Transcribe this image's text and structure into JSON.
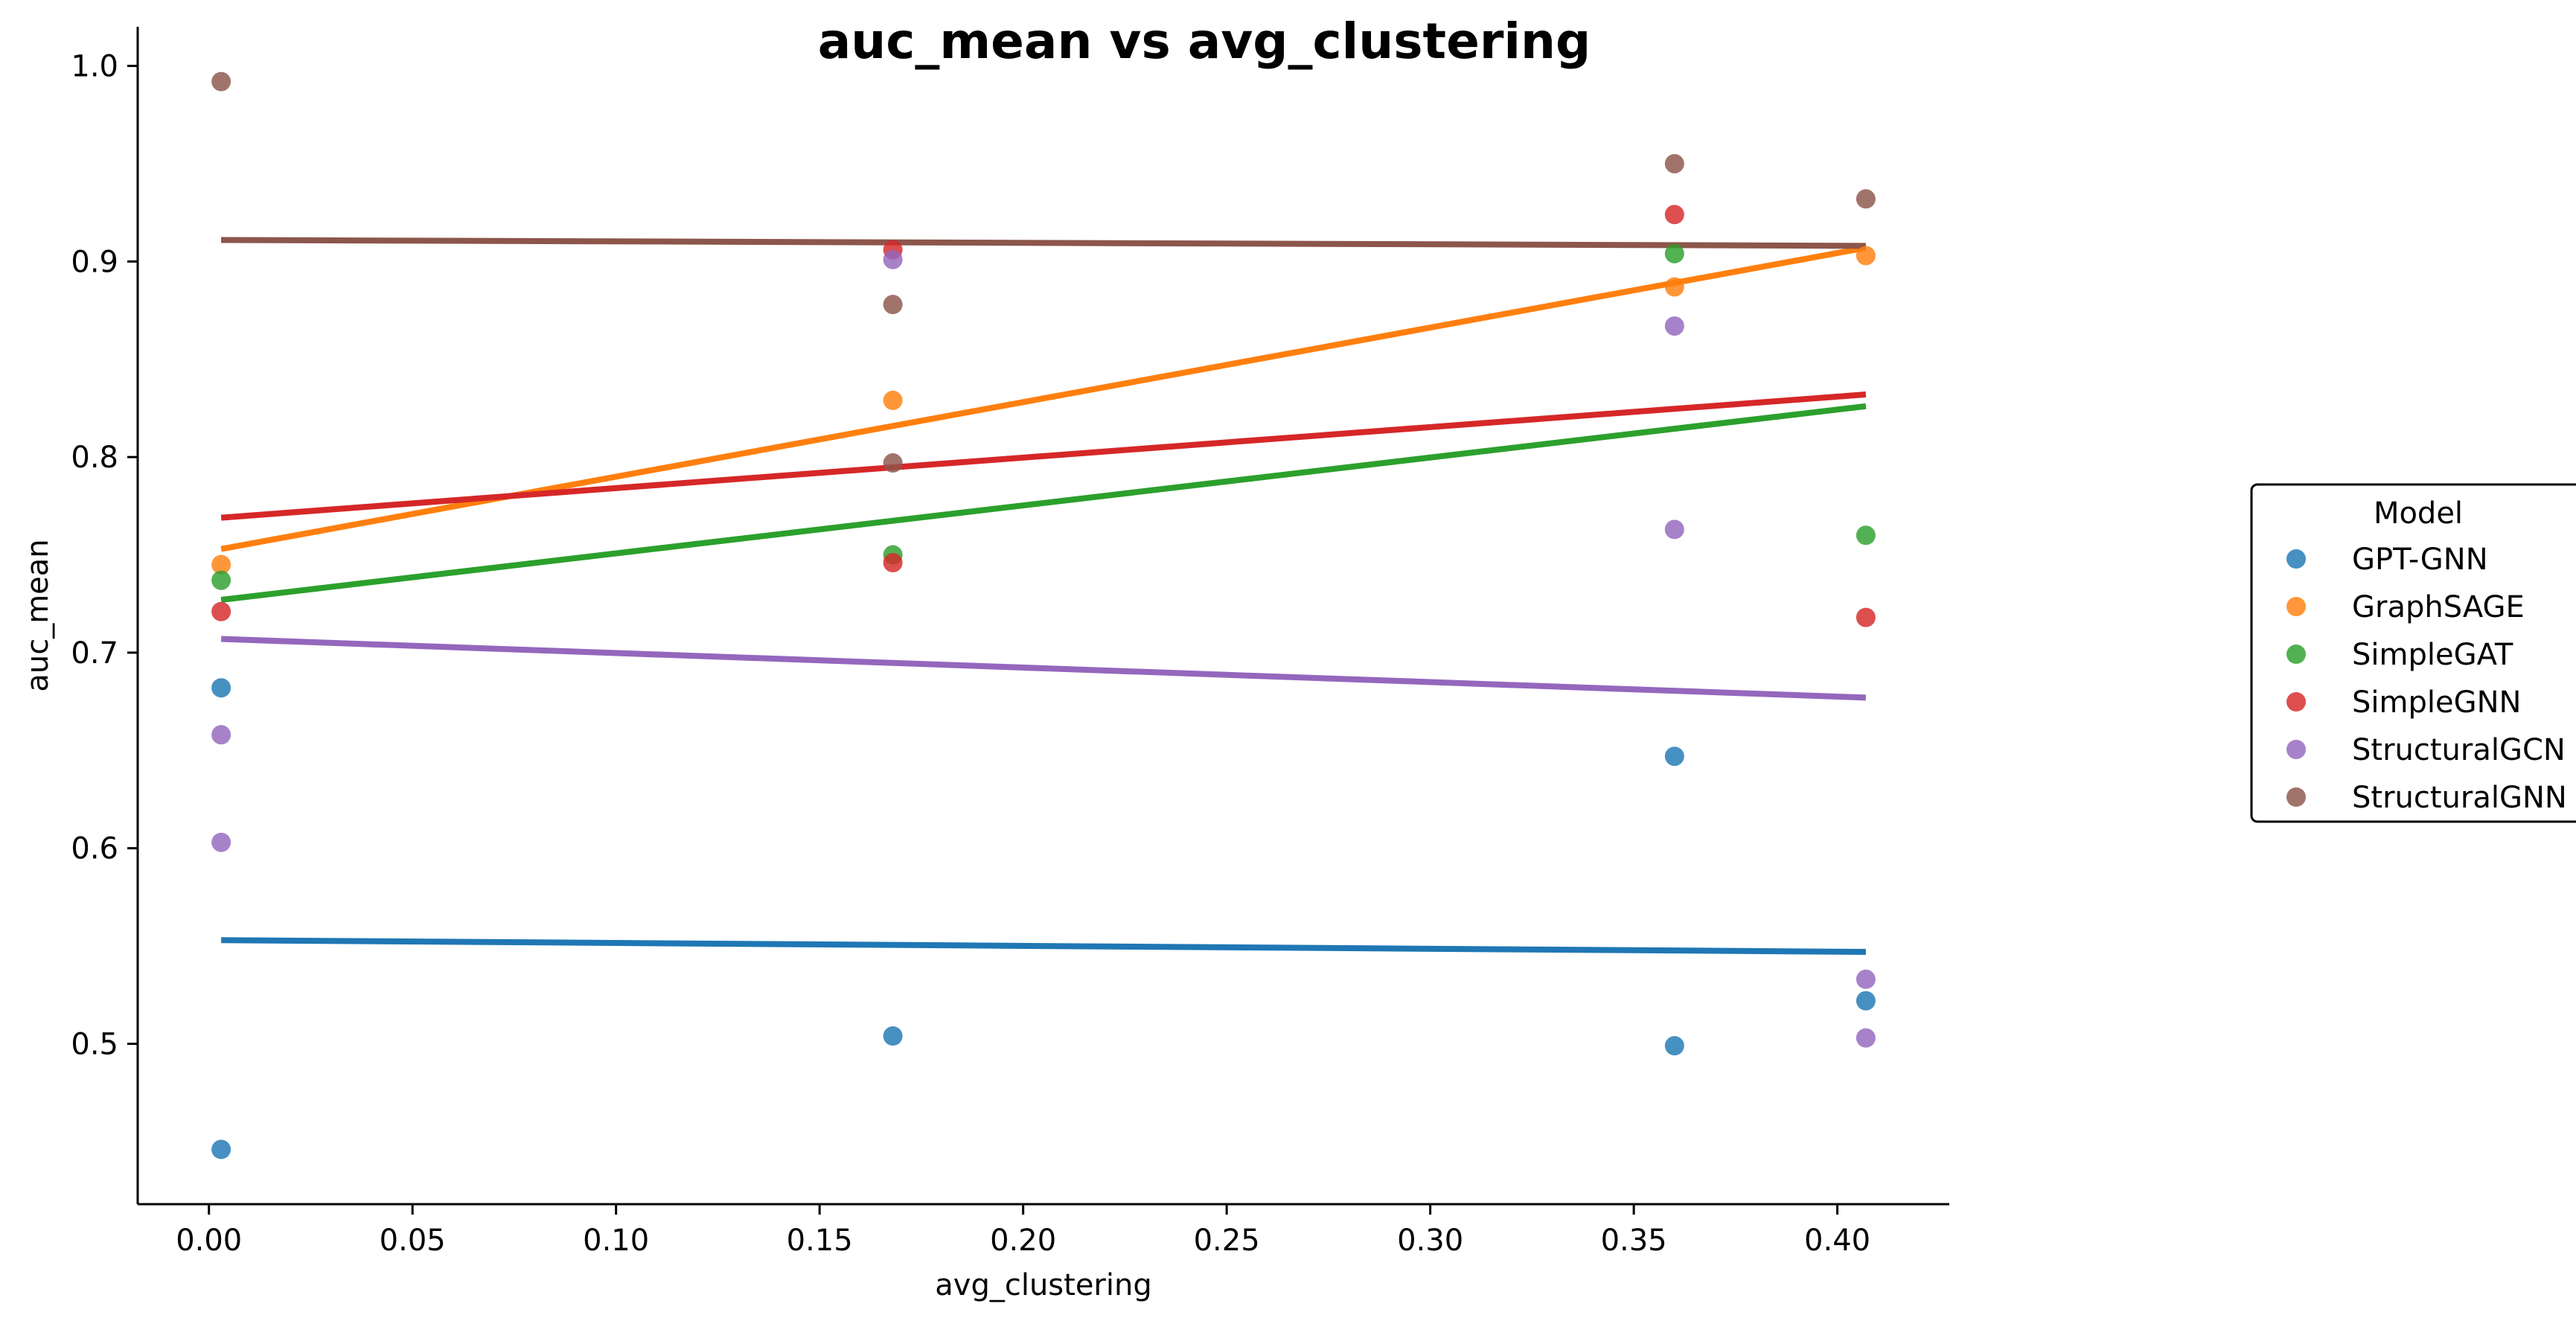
{
  "chart_data": {
    "type": "scatter",
    "title": "auc_mean vs avg_clustering",
    "xlabel": "avg_clustering",
    "ylabel": "auc_mean",
    "xlim": [
      -0.0175,
      0.4275
    ],
    "ylim": [
      0.418,
      1.02
    ],
    "xticks": [
      0.0,
      0.05,
      0.1,
      0.15,
      0.2,
      0.25,
      0.3,
      0.35,
      0.4
    ],
    "xtick_labels": [
      "0.00",
      "0.05",
      "0.10",
      "0.15",
      "0.20",
      "0.25",
      "0.30",
      "0.35",
      "0.40"
    ],
    "yticks": [
      0.5,
      0.6,
      0.7,
      0.8,
      0.9,
      1.0
    ],
    "ytick_labels": [
      "0.5",
      "0.6",
      "0.7",
      "0.8",
      "0.9",
      "1.0"
    ],
    "grid": false,
    "legend": {
      "title": "Model",
      "placement": "center-right"
    },
    "series": [
      {
        "name": "GPT-GNN",
        "color": "#1f77b4",
        "points": [
          [
            0.003,
            0.682
          ],
          [
            0.003,
            0.446
          ],
          [
            0.168,
            0.504
          ],
          [
            0.36,
            0.647
          ],
          [
            0.36,
            0.499
          ],
          [
            0.407,
            0.522
          ]
        ],
        "fit": [
          [
            0.003,
            0.553
          ],
          [
            0.407,
            0.547
          ]
        ]
      },
      {
        "name": "GraphSAGE",
        "color": "#ff7f0e",
        "points": [
          [
            0.003,
            0.745
          ],
          [
            0.168,
            0.829
          ],
          [
            0.36,
            0.887
          ],
          [
            0.407,
            0.903
          ]
        ],
        "fit": [
          [
            0.003,
            0.753
          ],
          [
            0.407,
            0.907
          ]
        ]
      },
      {
        "name": "SimpleGAT",
        "color": "#2ca02c",
        "points": [
          [
            0.003,
            0.737
          ],
          [
            0.168,
            0.75
          ],
          [
            0.36,
            0.904
          ],
          [
            0.407,
            0.76
          ]
        ],
        "fit": [
          [
            0.003,
            0.727
          ],
          [
            0.407,
            0.826
          ]
        ]
      },
      {
        "name": "SimpleGNN",
        "color": "#d62728",
        "points": [
          [
            0.003,
            0.721
          ],
          [
            0.168,
            0.906
          ],
          [
            0.168,
            0.746
          ],
          [
            0.36,
            0.924
          ],
          [
            0.407,
            0.718
          ]
        ],
        "fit": [
          [
            0.003,
            0.769
          ],
          [
            0.407,
            0.832
          ]
        ]
      },
      {
        "name": "StructuralGCN",
        "color": "#9467bd",
        "points": [
          [
            0.003,
            0.658
          ],
          [
            0.003,
            0.603
          ],
          [
            0.168,
            0.901
          ],
          [
            0.36,
            0.867
          ],
          [
            0.36,
            0.763
          ],
          [
            0.407,
            0.533
          ],
          [
            0.407,
            0.503
          ]
        ],
        "fit": [
          [
            0.003,
            0.707
          ],
          [
            0.407,
            0.677
          ]
        ]
      },
      {
        "name": "StructuralGNN",
        "color": "#8c564b",
        "points": [
          [
            0.003,
            0.992
          ],
          [
            0.168,
            0.878
          ],
          [
            0.168,
            0.797
          ],
          [
            0.36,
            0.95
          ],
          [
            0.407,
            0.932
          ]
        ],
        "fit": [
          [
            0.003,
            0.911
          ],
          [
            0.407,
            0.908
          ]
        ]
      }
    ]
  }
}
